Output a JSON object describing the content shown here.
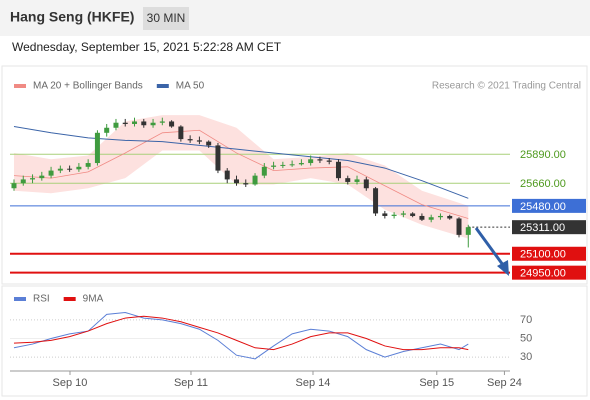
{
  "header": {
    "title": "Hang Seng (HKFE)",
    "interval": "30 MIN",
    "datetime": "Wednesday, September 15, 2021 5:22:28 AM CET"
  },
  "chart_data": [
    {
      "type": "candlestick",
      "credit": "Research © 2021 Trading Central",
      "xlim": [
        -0.43,
        53.5
      ],
      "ylim": [
        24860,
        26360
      ],
      "up_color": "#3f9b3f",
      "down_color": "#333333",
      "open": [
        25620,
        25660,
        25690,
        25700,
        25720,
        25760,
        25775,
        25770,
        25790,
        25820,
        26060,
        26100,
        26140,
        26130,
        26150,
        26120,
        26140,
        26150,
        26110,
        26010,
        26000,
        25990,
        25960,
        25760,
        25690,
        25660,
        25650,
        25720,
        25790,
        25800,
        25805,
        25810,
        25820,
        25850,
        25840,
        25830,
        25700,
        25670,
        25690,
        25620,
        25420,
        25400,
        25410,
        25420,
        25400,
        25370,
        25390,
        25400,
        25380,
        25250
      ],
      "high": [
        25690,
        25720,
        25730,
        25750,
        25790,
        25800,
        25800,
        25820,
        25850,
        26080,
        26130,
        26170,
        26170,
        26180,
        26170,
        26170,
        26180,
        26160,
        26120,
        26040,
        26030,
        26000,
        25980,
        25780,
        25720,
        25690,
        25740,
        25820,
        25830,
        25830,
        25840,
        25850,
        25880,
        25870,
        25860,
        25850,
        25720,
        25720,
        25710,
        25630,
        25440,
        25430,
        25440,
        25430,
        25420,
        25410,
        25420,
        25410,
        25390,
        25330
      ],
      "low": [
        25600,
        25640,
        25660,
        25680,
        25700,
        25740,
        25750,
        25750,
        25770,
        25800,
        26030,
        26080,
        26110,
        26110,
        26100,
        26100,
        26120,
        26100,
        25990,
        25980,
        25970,
        25940,
        25740,
        25660,
        25640,
        25630,
        25640,
        25700,
        25770,
        25780,
        25790,
        25800,
        25800,
        25820,
        25810,
        25680,
        25650,
        25650,
        25600,
        25400,
        25380,
        25380,
        25390,
        25390,
        25360,
        25350,
        25370,
        25370,
        25230,
        25150
      ],
      "close": [
        25660,
        25690,
        25700,
        25720,
        25760,
        25775,
        25770,
        25790,
        25820,
        26060,
        26100,
        26140,
        26130,
        26150,
        26120,
        26140,
        26150,
        26110,
        26010,
        26000,
        25990,
        25960,
        25760,
        25690,
        25660,
        25650,
        25720,
        25790,
        25800,
        25805,
        25810,
        25820,
        25850,
        25840,
        25830,
        25700,
        25670,
        25690,
        25620,
        25420,
        25400,
        25410,
        25420,
        25400,
        25370,
        25390,
        25400,
        25380,
        25250,
        25311
      ],
      "series": [
        {
          "name": "MA 20 + Bollinger Bands",
          "color": "#f08a84",
          "band_color": "#fde1df",
          "x": [
            0,
            4,
            8,
            12,
            16,
            20,
            24,
            28,
            32,
            36,
            40,
            44,
            49
          ],
          "values": [
            25720,
            25700,
            25750,
            25900,
            26060,
            26080,
            25900,
            25760,
            25780,
            25790,
            25640,
            25490,
            25380
          ],
          "upper": [
            25900,
            25850,
            25880,
            26150,
            26200,
            26200,
            26100,
            25850,
            25870,
            25900,
            25800,
            25600,
            25480
          ],
          "lower": [
            25600,
            25580,
            25620,
            25700,
            25920,
            25920,
            25650,
            25650,
            25700,
            25650,
            25450,
            25330,
            25220
          ]
        },
        {
          "name": "MA 50",
          "color": "#3b64a8",
          "x": [
            0,
            4,
            8,
            12,
            16,
            20,
            24,
            28,
            32,
            36,
            40,
            44,
            49
          ],
          "values": [
            26110,
            26060,
            26020,
            26000,
            25990,
            25960,
            25930,
            25900,
            25870,
            25840,
            25780,
            25680,
            25540
          ]
        }
      ],
      "levels": [
        {
          "value": 25890,
          "label": "25890.00",
          "color": "#a9d07a",
          "text_color": "#4e9a1e",
          "label_box": false,
          "line": "solid"
        },
        {
          "value": 25660,
          "label": "25660.00",
          "color": "#a9d07a",
          "text_color": "#4e9a1e",
          "label_box": false,
          "line": "solid"
        },
        {
          "value": 25480,
          "label": "25480.00",
          "color": "#3d6fd6",
          "text_color": "#ffffff",
          "label_box": true,
          "line": "solid"
        },
        {
          "value": 25311,
          "label": "25311.00",
          "color": "#333333",
          "text_color": "#ffffff",
          "label_box": true,
          "line": "dotted"
        },
        {
          "value": 25100,
          "label": "25100.00",
          "color": "#e01010",
          "text_color": "#ffffff",
          "label_box": true,
          "line": "solid"
        },
        {
          "value": 24950,
          "label": "24950.00",
          "color": "#e01010",
          "text_color": "#ffffff",
          "label_box": true,
          "line": "solid"
        }
      ]
    },
    {
      "type": "line",
      "xlim": [
        -0.43,
        53.5
      ],
      "ylim": [
        15,
        85
      ],
      "yticks": [
        70,
        50,
        30
      ],
      "xticks": [
        {
          "value": 6.04,
          "label": "Sep 10"
        },
        {
          "value": 19.09,
          "label": "Sep 11"
        },
        {
          "value": 32.25,
          "label": "Sep 14"
        },
        {
          "value": 45.6,
          "label": "Sep 15"
        },
        {
          "value": 52.9,
          "label": "Sep 24"
        }
      ],
      "series": [
        {
          "name": "RSI",
          "color": "#5b7fd6",
          "x": [
            0,
            2,
            4,
            6,
            8,
            10,
            12,
            14,
            16,
            18,
            20,
            22,
            24,
            26,
            28,
            30,
            32,
            34,
            36,
            38,
            40,
            42,
            44,
            46,
            48,
            49
          ],
          "values": [
            40,
            44,
            50,
            55,
            58,
            76,
            78,
            72,
            70,
            66,
            60,
            48,
            32,
            28,
            42,
            55,
            60,
            58,
            52,
            38,
            30,
            36,
            40,
            44,
            38,
            44
          ]
        },
        {
          "name": "9MA",
          "color": "#e01010",
          "x": [
            0,
            2,
            4,
            6,
            8,
            10,
            12,
            14,
            16,
            18,
            20,
            22,
            24,
            26,
            28,
            30,
            32,
            34,
            36,
            38,
            40,
            42,
            44,
            46,
            48,
            49
          ],
          "values": [
            45,
            46,
            48,
            52,
            58,
            66,
            72,
            74,
            72,
            68,
            62,
            56,
            48,
            40,
            38,
            44,
            52,
            56,
            56,
            50,
            42,
            38,
            38,
            40,
            40,
            38
          ]
        }
      ]
    }
  ]
}
